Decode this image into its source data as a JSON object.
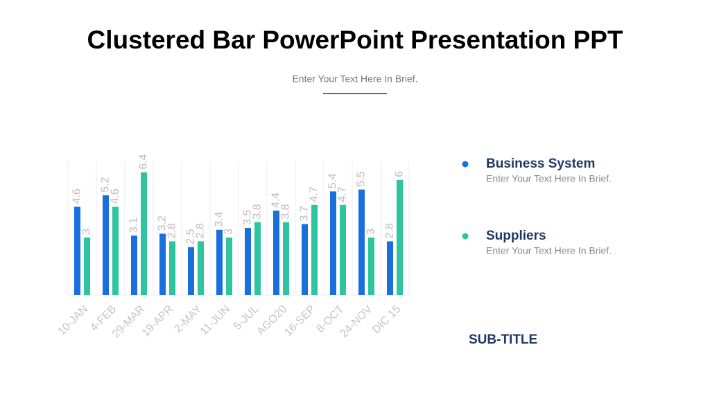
{
  "slide": {
    "title": "Clustered Bar PowerPoint Presentation PPT",
    "subtitle": "Enter Your Text Here In Brief.",
    "sub_title": "SUB-TITLE"
  },
  "chart_data": {
    "type": "bar",
    "categories": [
      "10-JAN",
      "4-FEB",
      "29-MAR",
      "19-APR",
      "2-MAY",
      "11-JUN",
      "5-JUL",
      "AGO20",
      "16-SEP",
      "8-OCT",
      "24-NOV",
      "DIC 15"
    ],
    "series": [
      {
        "name": "Business System",
        "description": "Enter Your Text Here In Brief.",
        "color": "#1a6fdf",
        "values": [
          4.6,
          5.2,
          3.1,
          3.2,
          2.5,
          3.4,
          3.5,
          4.4,
          3.7,
          5.4,
          5.5,
          2.8
        ]
      },
      {
        "name": "Suppliers",
        "description": "Enter Your Text Here In Brief.",
        "color": "#2ec4a0",
        "values": [
          3,
          4.6,
          6.4,
          2.8,
          2.8,
          3,
          3.8,
          3.8,
          4.7,
          4.7,
          3,
          6
        ]
      }
    ],
    "ylim": [
      0,
      7
    ]
  }
}
